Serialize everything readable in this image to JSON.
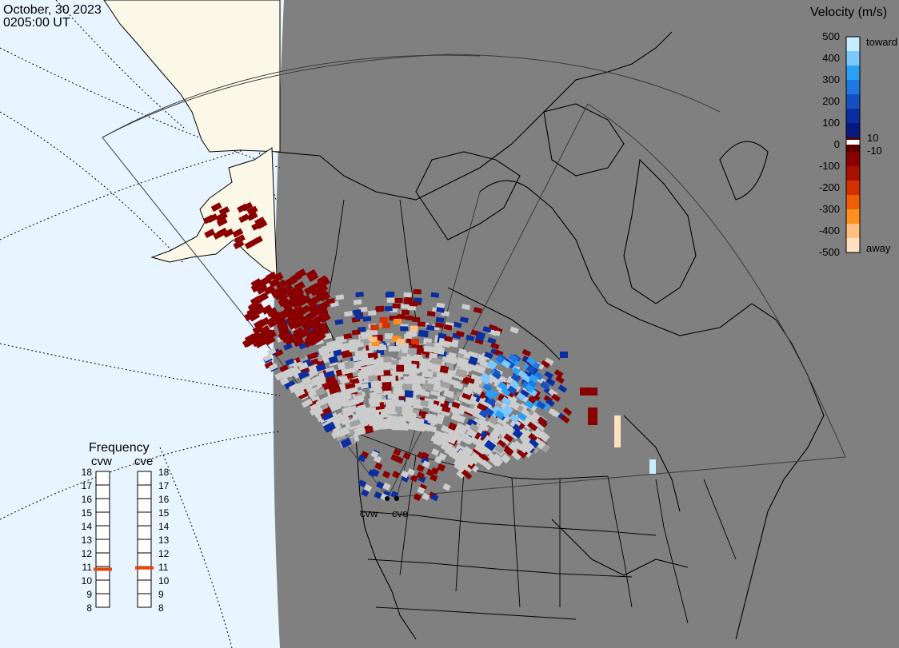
{
  "header": {
    "date": "October, 30 2023",
    "time": "0205:00 UT"
  },
  "colors": {
    "ocean_day": "#e8f4ff",
    "land_day": "#fcf8e8",
    "night": "#808080",
    "no_scatter": "#cccccc",
    "ground_scatter": "#a0a0a0"
  },
  "legend": {
    "title": "Velocity (m/s)",
    "tick_labels": [
      "500",
      "400",
      "300",
      "200",
      "100",
      "10",
      "0",
      "-10",
      "-100",
      "-200",
      "-300",
      "-400",
      "-500"
    ],
    "toward_label": "toward",
    "away_label": "away",
    "colors_top_to_bottom": [
      "#c8ecff",
      "#7cc8ff",
      "#2aa0f5",
      "#1f78e0",
      "#1550c0",
      "#0a2ea0",
      "#061a80",
      "#5a0000",
      "#8a0000",
      "#a81000",
      "#d43000",
      "#f06000",
      "#ff9020",
      "#ffc080",
      "#ffe0c0"
    ]
  },
  "radars": {
    "site_labels": [
      "cvw",
      "cve"
    ],
    "frequency_panel": {
      "title": "Frequency",
      "channels": [
        "cvw",
        "cve"
      ],
      "scale_labels": [
        "18",
        "17",
        "16",
        "15",
        "14",
        "13",
        "12",
        "11",
        "10",
        "9",
        "8"
      ],
      "current_mhz": {
        "cvw": 10.8,
        "cve": 10.9
      },
      "indicator_color": "#e04a10"
    }
  }
}
